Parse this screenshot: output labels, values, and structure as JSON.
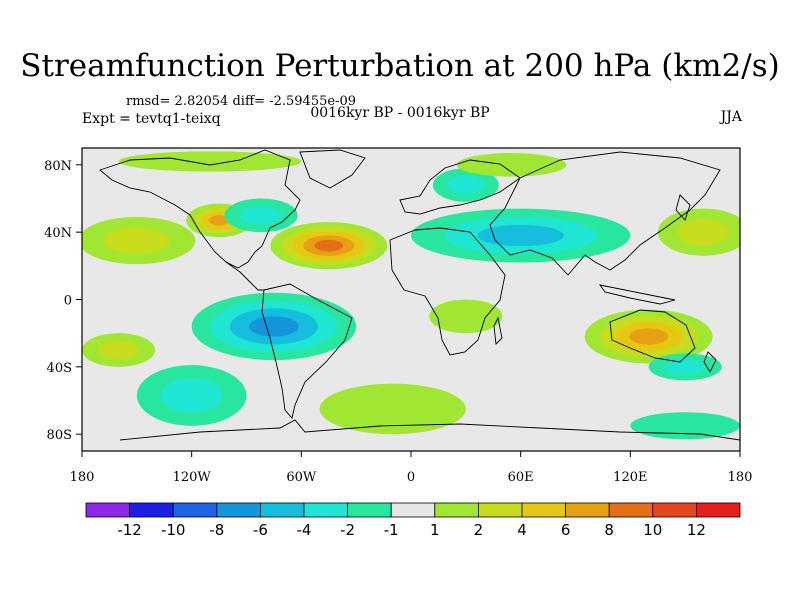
{
  "title": "Streamfunction Perturbation at 200 hPa (km2/s)",
  "stats": {
    "rmsd_label": "rmsd= 2.82054",
    "diff_label": "diff= -2.59455e-09"
  },
  "experiment": "Expt = tevtq1-teixq",
  "period": "0016kyr BP - 0016kyr BP",
  "season": "JJA",
  "map": {
    "x_ticks": [
      {
        "lon": -180,
        "label": "180"
      },
      {
        "lon": -120,
        "label": "120W"
      },
      {
        "lon": -60,
        "label": "60W"
      },
      {
        "lon": 0,
        "label": "0"
      },
      {
        "lon": 60,
        "label": "60E"
      },
      {
        "lon": 120,
        "label": "120E"
      },
      {
        "lon": 180,
        "label": "180"
      }
    ],
    "y_ticks": [
      {
        "lat": 80,
        "label": "80N"
      },
      {
        "lat": 40,
        "label": "40N"
      },
      {
        "lat": 0,
        "label": "0"
      },
      {
        "lat": -40,
        "label": "40S"
      },
      {
        "lat": -80,
        "label": "80S"
      }
    ],
    "lon_range": [
      -180,
      180
    ],
    "lat_range": [
      -90,
      90
    ],
    "background_color": "#e8e8e8"
  },
  "field_anomalies": [
    {
      "lon": -45,
      "lat": 32,
      "value": 9,
      "rx_deg": 32,
      "ry_deg": 14
    },
    {
      "lon": -105,
      "lat": 47,
      "value": 7,
      "rx_deg": 18,
      "ry_deg": 10
    },
    {
      "lon": -150,
      "lat": 35,
      "value": 3,
      "rx_deg": 32,
      "ry_deg": 14
    },
    {
      "lon": -82,
      "lat": 50,
      "value": -4,
      "rx_deg": 20,
      "ry_deg": 10
    },
    {
      "lon": -75,
      "lat": -16,
      "value": -8,
      "rx_deg": 45,
      "ry_deg": 20
    },
    {
      "lon": 60,
      "lat": 38,
      "value": -5,
      "rx_deg": 60,
      "ry_deg": 16
    },
    {
      "lon": 30,
      "lat": 68,
      "value": -4,
      "rx_deg": 18,
      "ry_deg": 10
    },
    {
      "lon": -120,
      "lat": -57,
      "value": -4,
      "rx_deg": 30,
      "ry_deg": 18
    },
    {
      "lon": 130,
      "lat": -22,
      "value": 8,
      "rx_deg": 35,
      "ry_deg": 16
    },
    {
      "lon": 150,
      "lat": -40,
      "value": -3,
      "rx_deg": 20,
      "ry_deg": 8
    },
    {
      "lon": 55,
      "lat": 80,
      "value": 2,
      "rx_deg": 30,
      "ry_deg": 7
    },
    {
      "lon": -110,
      "lat": 82,
      "value": 2,
      "rx_deg": 50,
      "ry_deg": 6
    },
    {
      "lon": 160,
      "lat": 40,
      "value": 3,
      "rx_deg": 25,
      "ry_deg": 14
    },
    {
      "lon": 30,
      "lat": -10,
      "value": 2,
      "rx_deg": 20,
      "ry_deg": 10
    },
    {
      "lon": -10,
      "lat": -65,
      "value": 2,
      "rx_deg": 40,
      "ry_deg": 15
    },
    {
      "lon": 150,
      "lat": -75,
      "value": -2,
      "rx_deg": 30,
      "ry_deg": 8
    },
    {
      "lon": -160,
      "lat": -30,
      "value": 3,
      "rx_deg": 20,
      "ry_deg": 10
    }
  ],
  "colorbar": {
    "colors": [
      "#8c28e6",
      "#1e1ee6",
      "#1e64e6",
      "#1496dc",
      "#14bedc",
      "#1ee6d2",
      "#28e6a0",
      "#e6e6e6",
      "#a0e632",
      "#c8dc1e",
      "#e6c814",
      "#e6a014",
      "#e66e14",
      "#e6461e",
      "#e61e1e"
    ],
    "labels": [
      "-12",
      "-10",
      "-8",
      "-6",
      "-4",
      "-2",
      "-1",
      "1",
      "2",
      "4",
      "6",
      "8",
      "10",
      "12"
    ],
    "levels": [
      -12,
      -10,
      -8,
      -6,
      -4,
      -2,
      -1,
      1,
      2,
      4,
      6,
      8,
      10,
      12
    ]
  }
}
